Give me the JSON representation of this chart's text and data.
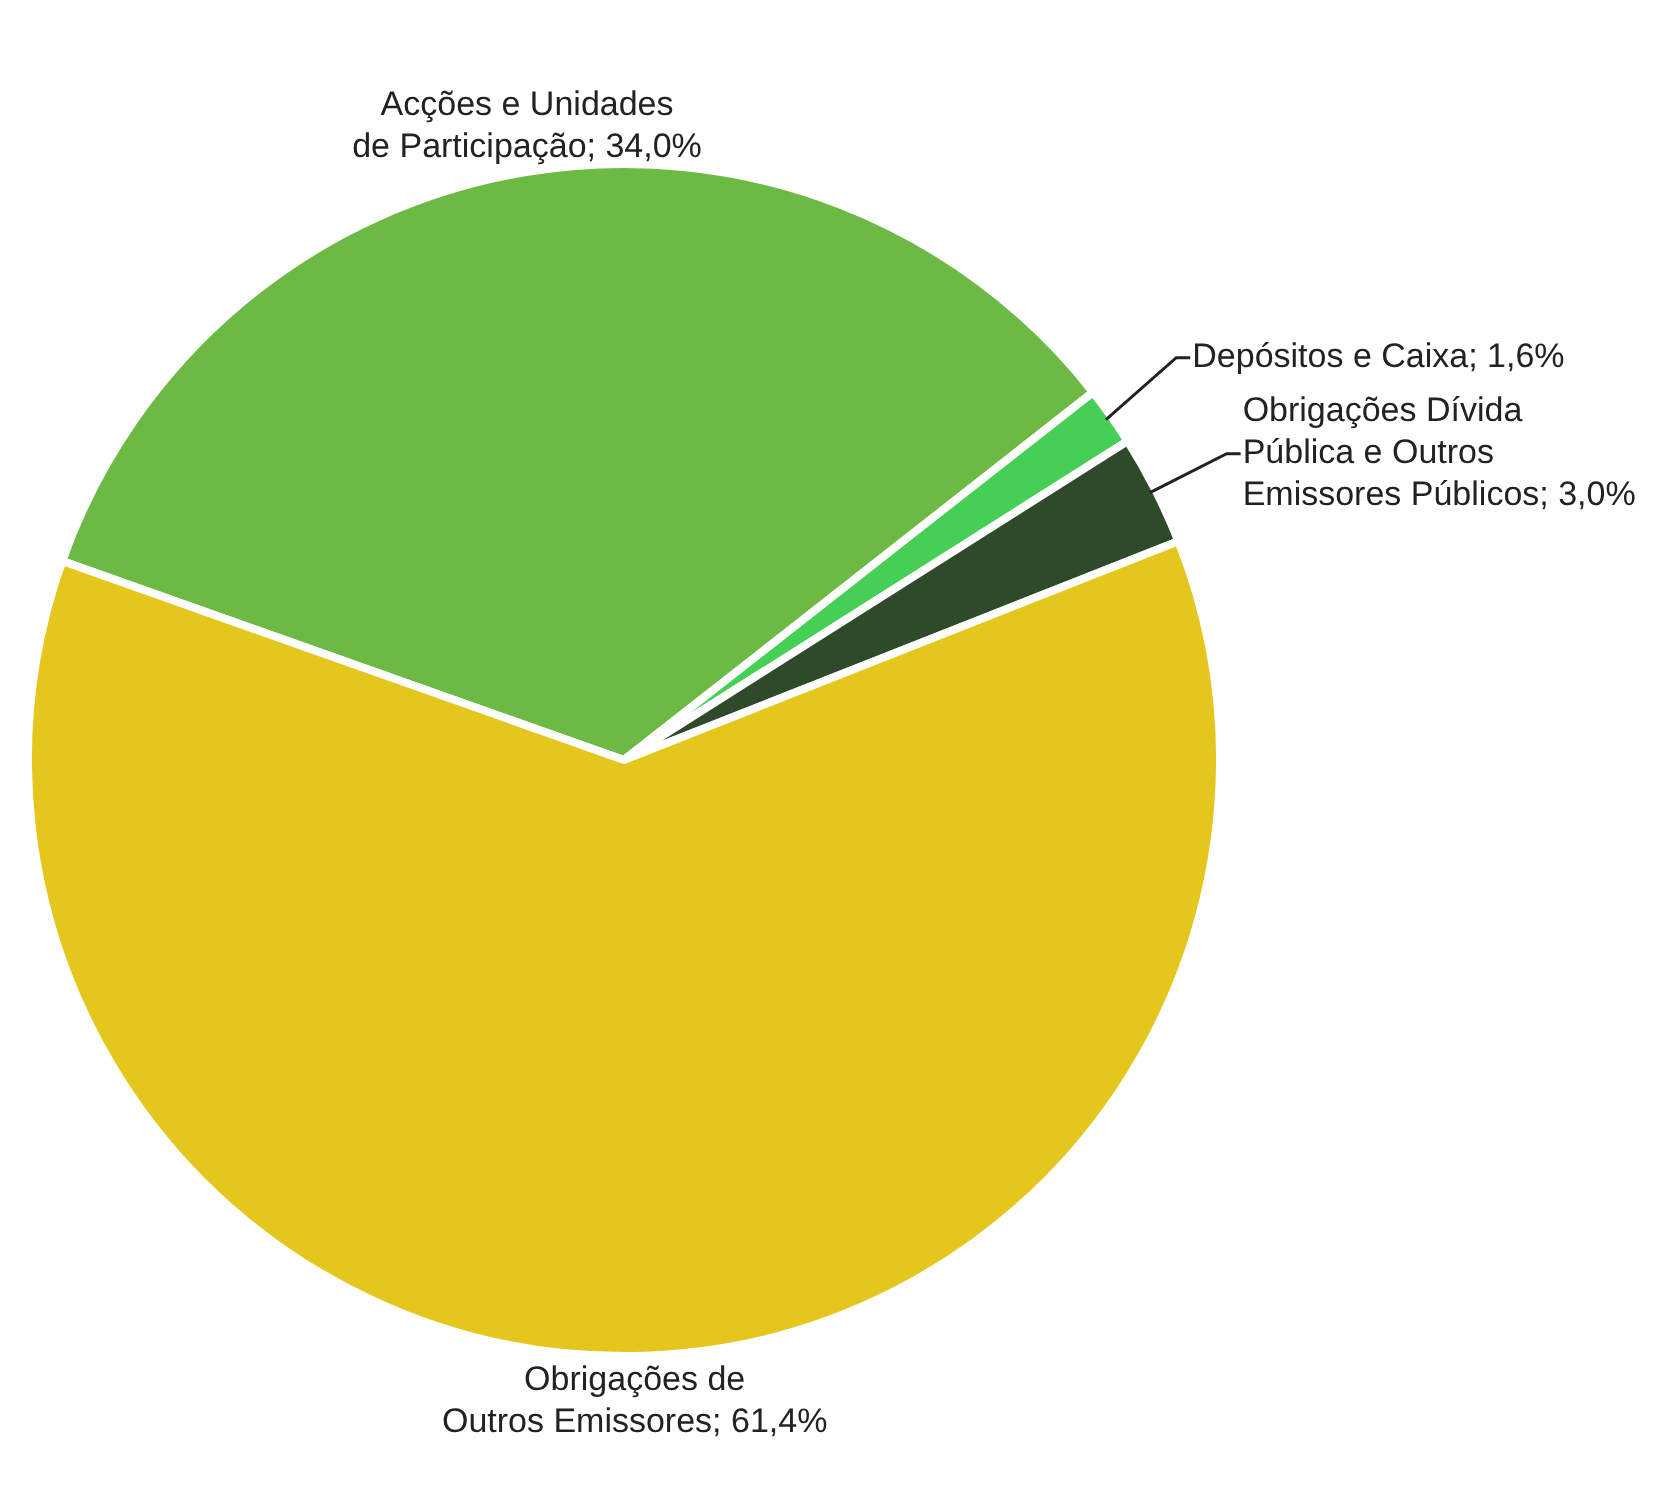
{
  "chart_data": {
    "type": "pie",
    "categories": [
      "Acções e Unidades de Participação",
      "Depósitos e Caixa",
      "Obrigações Dívida Pública e Outros Emissores Públicos",
      "Obrigações de Outros Emissores"
    ],
    "values": [
      34.0,
      1.6,
      3.0,
      61.4
    ],
    "colors": [
      "#6cb944",
      "#45cf55",
      "#2e4a2a",
      "#e4c61c"
    ],
    "value_labels": [
      "34,0%",
      "1,6%",
      "3,0%",
      "61,4%"
    ],
    "legend": false
  }
}
